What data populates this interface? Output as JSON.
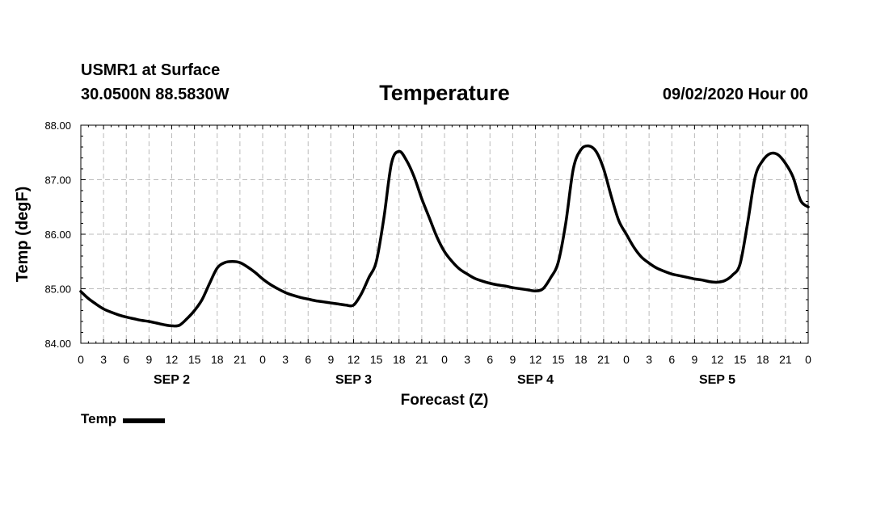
{
  "header": {
    "station": "USMR1 at Surface",
    "location": "30.0500N 88.5830W",
    "title": "Temperature",
    "valid_time": "09/02/2020 Hour 00"
  },
  "legend": {
    "label": "Temp"
  },
  "chart_data": {
    "type": "line",
    "title": "Temperature",
    "xlabel": "Forecast (Z)",
    "ylabel": "Temp (degF)",
    "ylim": [
      84,
      88
    ],
    "xlim": [
      0,
      96
    ],
    "yticks": [
      "84.00",
      "85.00",
      "86.00",
      "87.00",
      "88.00"
    ],
    "xticks": [
      "0",
      "3",
      "6",
      "9",
      "12",
      "15",
      "18",
      "21",
      "0",
      "3",
      "6",
      "9",
      "12",
      "15",
      "18",
      "21",
      "0",
      "3",
      "6",
      "9",
      "12",
      "15",
      "18",
      "21",
      "0",
      "3",
      "6",
      "9",
      "12",
      "15",
      "18",
      "21",
      "0"
    ],
    "day_labels": [
      {
        "label": "SEP 2",
        "hour": 12
      },
      {
        "label": "SEP 3",
        "hour": 36
      },
      {
        "label": "SEP 4",
        "hour": 60
      },
      {
        "label": "SEP 5",
        "hour": 84
      }
    ],
    "grid": true,
    "legend_position": "bottom-left",
    "series": [
      {
        "name": "Temp",
        "x": [
          0,
          1,
          2,
          3,
          4,
          5,
          6,
          7,
          8,
          9,
          10,
          11,
          12,
          13,
          14,
          15,
          16,
          17,
          18,
          19,
          20,
          21,
          22,
          23,
          24,
          25,
          26,
          27,
          28,
          29,
          30,
          31,
          32,
          33,
          34,
          35,
          36,
          37,
          38,
          39,
          40,
          41,
          42,
          43,
          44,
          45,
          46,
          47,
          48,
          49,
          50,
          51,
          52,
          53,
          54,
          55,
          56,
          57,
          58,
          59,
          60,
          61,
          62,
          63,
          64,
          65,
          66,
          67,
          68,
          69,
          70,
          71,
          72,
          73,
          74,
          75,
          76,
          77,
          78,
          79,
          80,
          81,
          82,
          83,
          84,
          85,
          86,
          87,
          88,
          89,
          90,
          91,
          92,
          93,
          94,
          95,
          96
        ],
        "values": [
          84.95,
          84.82,
          84.72,
          84.63,
          84.57,
          84.52,
          84.48,
          84.45,
          84.42,
          84.4,
          84.37,
          84.34,
          84.32,
          84.33,
          84.45,
          84.6,
          84.8,
          85.1,
          85.38,
          85.48,
          85.5,
          85.48,
          85.4,
          85.3,
          85.18,
          85.08,
          85.0,
          84.93,
          84.88,
          84.84,
          84.81,
          84.78,
          84.76,
          84.74,
          84.72,
          84.7,
          84.7,
          84.9,
          85.2,
          85.5,
          86.3,
          87.3,
          87.52,
          87.35,
          87.05,
          86.65,
          86.3,
          85.95,
          85.68,
          85.5,
          85.36,
          85.27,
          85.19,
          85.14,
          85.1,
          85.07,
          85.05,
          85.02,
          85.0,
          84.98,
          84.96,
          85.0,
          85.2,
          85.48,
          86.2,
          87.2,
          87.55,
          87.62,
          87.52,
          87.2,
          86.7,
          86.25,
          86.0,
          85.76,
          85.58,
          85.47,
          85.38,
          85.32,
          85.27,
          85.24,
          85.21,
          85.18,
          85.16,
          85.13,
          85.12,
          85.15,
          85.25,
          85.45,
          86.2,
          87.05,
          87.35,
          87.48,
          87.46,
          87.3,
          87.05,
          86.62,
          86.5
        ]
      }
    ]
  }
}
